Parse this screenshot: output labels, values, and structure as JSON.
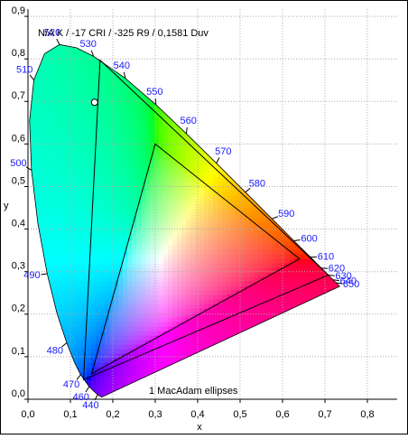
{
  "chart_data": {
    "type": "chromaticity",
    "title": "N/A K / -17 CRI / -325 R9 / 0,1581 Duv",
    "annotation": "1  MacAdam ellipses",
    "xlabel": "x",
    "ylabel": "y",
    "xlim": [
      0,
      0.87
    ],
    "ylim": [
      0,
      0.917
    ],
    "xticks": [
      {
        "value": 0,
        "label": "0,0"
      },
      {
        "value": 0.1,
        "label": "0,1"
      },
      {
        "value": 0.2,
        "label": "0,2"
      },
      {
        "value": 0.3,
        "label": "0,3"
      },
      {
        "value": 0.4,
        "label": "0,4"
      },
      {
        "value": 0.5,
        "label": "0,5"
      },
      {
        "value": 0.6,
        "label": "0,6"
      },
      {
        "value": 0.7,
        "label": "0,7"
      },
      {
        "value": 0.8,
        "label": "0,8"
      }
    ],
    "yticks": [
      {
        "value": 0,
        "label": "0,0"
      },
      {
        "value": 0.1,
        "label": "0,1"
      },
      {
        "value": 0.2,
        "label": "0,2"
      },
      {
        "value": 0.3,
        "label": "0,3"
      },
      {
        "value": 0.4,
        "label": "0,4"
      },
      {
        "value": 0.5,
        "label": "0,5"
      },
      {
        "value": 0.6,
        "label": "0,6"
      },
      {
        "value": 0.7,
        "label": "0,7"
      },
      {
        "value": 0.8,
        "label": "0,8"
      },
      {
        "value": 0.9,
        "label": "0,9"
      }
    ],
    "grid": true,
    "locus": {
      "x": [
        0.1741,
        0.1644,
        0.1566,
        0.144,
        0.1241,
        0.1096,
        0.0913,
        0.0687,
        0.0454,
        0.0235,
        0.0082,
        0.0039,
        0.0139,
        0.0389,
        0.0743,
        0.1142,
        0.1547,
        0.2296,
        0.3016,
        0.3731,
        0.4441,
        0.5125,
        0.5752,
        0.627,
        0.6658,
        0.6915,
        0.7079,
        0.719,
        0.726,
        0.73,
        0.7347
      ],
      "y": [
        0.005,
        0.0109,
        0.0177,
        0.0297,
        0.0578,
        0.0868,
        0.1327,
        0.2007,
        0.295,
        0.4127,
        0.5384,
        0.6548,
        0.7502,
        0.812,
        0.8338,
        0.8262,
        0.8059,
        0.7543,
        0.6923,
        0.6245,
        0.5547,
        0.4866,
        0.4242,
        0.3725,
        0.334,
        0.3083,
        0.292,
        0.2809,
        0.274,
        0.27,
        0.2653
      ],
      "wavelengths": [
        null,
        440,
        null,
        460,
        470,
        null,
        480,
        null,
        490,
        null,
        500,
        null,
        510,
        null,
        520,
        null,
        530,
        540,
        550,
        560,
        570,
        580,
        590,
        600,
        610,
        620,
        630,
        640,
        650,
        null,
        null
      ],
      "label_color": "#1a1aff"
    },
    "gamuts": [
      {
        "x": [
          0.17,
          0.708,
          0.131
        ],
        "y": [
          0.797,
          0.292,
          0.046
        ],
        "color": "#000000"
      },
      {
        "x": [
          0.3,
          0.64,
          0.15
        ],
        "y": [
          0.6,
          0.33,
          0.06
        ],
        "color": "#000000"
      }
    ],
    "point": {
      "x": 0.157,
      "y": 0.698
    }
  }
}
